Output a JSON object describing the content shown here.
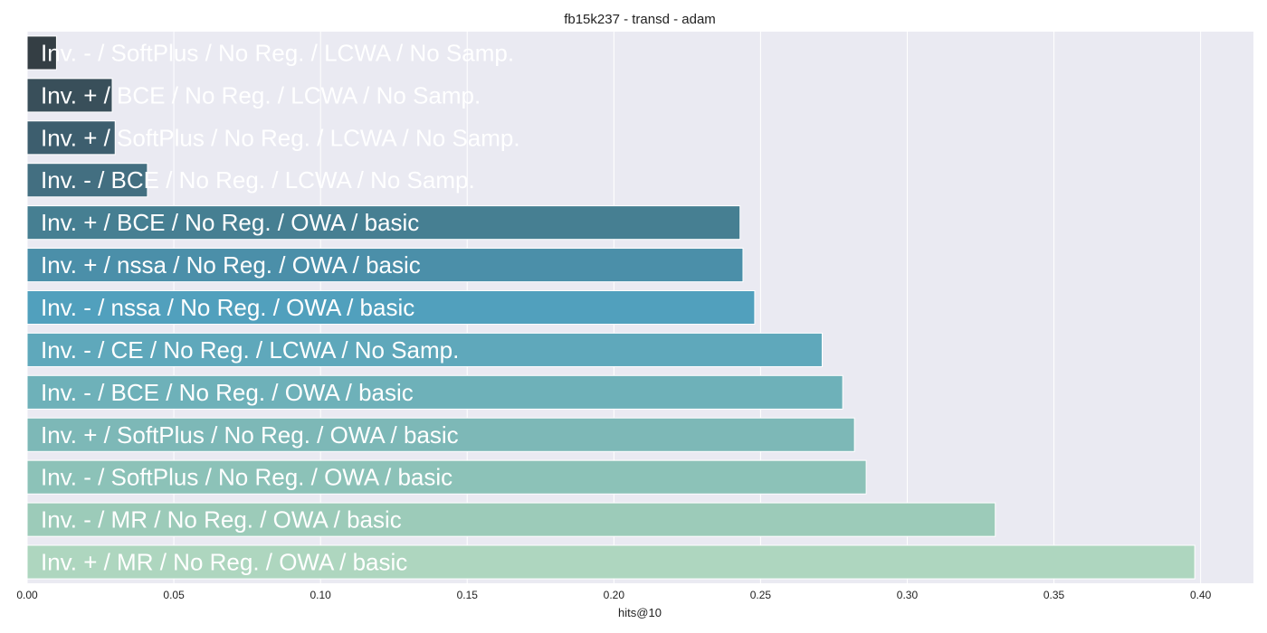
{
  "chart_data": {
    "type": "bar",
    "orientation": "horizontal",
    "title": "fb15k237 - transd - adam",
    "xlabel": "hits@10",
    "ylabel": "",
    "xlim": [
      0,
      0.418
    ],
    "xticks": [
      "0.00",
      "0.05",
      "0.10",
      "0.15",
      "0.20",
      "0.25",
      "0.30",
      "0.35",
      "0.40"
    ],
    "grid": true,
    "categories": [
      "Inv. - / SoftPlus / No Reg. / LCWA / No Samp.",
      "Inv. + / BCE / No Reg. / LCWA / No Samp.",
      "Inv. + / SoftPlus / No Reg. / LCWA / No Samp.",
      "Inv. - / BCE / No Reg. / LCWA / No Samp.",
      "Inv. + / BCE / No Reg. / OWA / basic",
      "Inv. + / nssa / No Reg. / OWA / basic",
      "Inv. - / nssa / No Reg. / OWA / basic",
      "Inv. - / CE / No Reg. / LCWA / No Samp.",
      "Inv. - / BCE / No Reg. / OWA / basic",
      "Inv. + / SoftPlus / No Reg. / OWA / basic",
      "Inv. - / SoftPlus / No Reg. / OWA / basic",
      "Inv. - / MR / No Reg. / OWA / basic",
      "Inv. + / MR / No Reg. / OWA / basic"
    ],
    "values": [
      0.01,
      0.029,
      0.03,
      0.041,
      0.243,
      0.244,
      0.248,
      0.271,
      0.278,
      0.282,
      0.286,
      0.33,
      0.398
    ],
    "colors": [
      "#343e44",
      "#394f5a",
      "#3d5e6e",
      "#436f81",
      "#467f92",
      "#4b8fa9",
      "#51a0bd",
      "#5fa8bb",
      "#6eb1b9",
      "#7db8b7",
      "#8cc2b8",
      "#9ccbb9",
      "#aed6bf"
    ]
  }
}
